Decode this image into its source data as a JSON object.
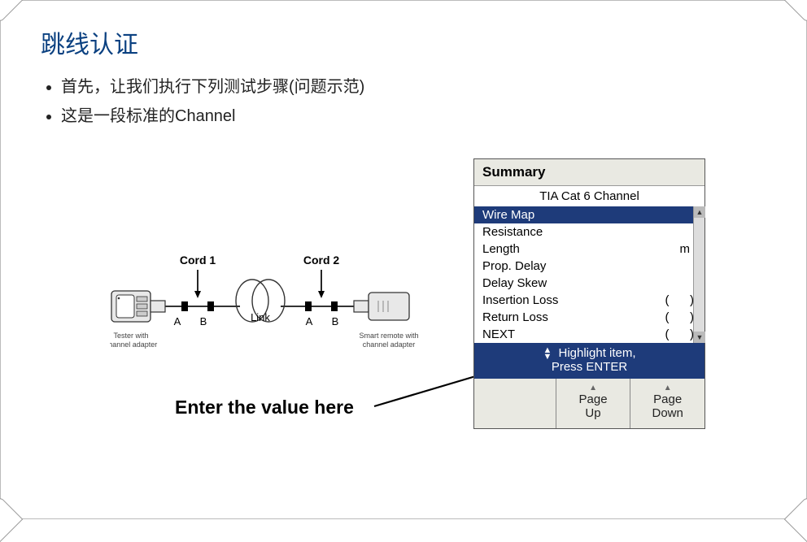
{
  "slide": {
    "title": "跳线认证",
    "bullets": [
      "首先，让我们执行下列测试步骤(问题示范)",
      "这是一段标准的Channel"
    ],
    "enter_value_label": "Enter the value here"
  },
  "diagram": {
    "cord1_label": "Cord 1",
    "cord2_label": "Cord 2",
    "link_label": "Link",
    "left_device_line1": "Tester with",
    "left_device_line2": "channel adapter",
    "right_device_line1": "Smart remote with",
    "right_device_line2": "channel adapter",
    "conn_A": "A",
    "conn_B": "B",
    "colors": {
      "stroke": "#333333",
      "fill_body": "#e8e8e8",
      "label": "#222222"
    }
  },
  "device": {
    "header": "Summary",
    "subheader": "TIA Cat 6 Channel",
    "rows": [
      {
        "name": "Wire Map",
        "unit": "",
        "p1": "",
        "p2": "",
        "selected": true
      },
      {
        "name": "Resistance",
        "unit": "",
        "p1": "",
        "p2": "",
        "selected": false
      },
      {
        "name": "Length",
        "unit": "m",
        "p1": "",
        "p2": "",
        "selected": false
      },
      {
        "name": "Prop. Delay",
        "unit": "",
        "p1": "",
        "p2": "",
        "selected": false
      },
      {
        "name": "Delay Skew",
        "unit": "",
        "p1": "",
        "p2": "",
        "selected": false
      },
      {
        "name": "Insertion Loss",
        "unit": "",
        "p1": "(",
        "p2": ")",
        "selected": false
      },
      {
        "name": "Return Loss",
        "unit": "",
        "p1": "(",
        "p2": ")",
        "selected": false
      },
      {
        "name": "NEXT",
        "unit": "",
        "p1": "(",
        "p2": ")",
        "selected": false
      }
    ],
    "hint_line1": "Highlight item,",
    "hint_line2": "Press ENTER",
    "softkeys": {
      "pageup_l1": "Page",
      "pageup_l2": "Up",
      "pagedown_l1": "Page",
      "pagedown_l2": "Down"
    },
    "colors": {
      "panel_bg": "#e9e9e2",
      "list_bg": "#ffffff",
      "selected_bg": "#1e3b7a",
      "selected_fg": "#ffffff",
      "border": "#555555",
      "softkey_border": "#888888"
    }
  }
}
